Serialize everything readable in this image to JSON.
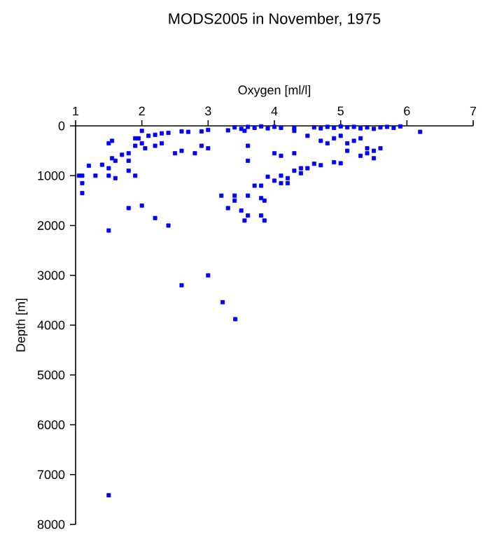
{
  "chart_data": {
    "type": "scatter",
    "title": "MODS2005 in November, 1975",
    "xlabel": "Oxygen [ml/l]",
    "ylabel": "Depth [m]",
    "color": "#0000ff",
    "marker": "square",
    "xlim": [
      1,
      7
    ],
    "ylim": [
      8000,
      0
    ],
    "xticks": [
      1,
      2,
      3,
      4,
      5,
      6,
      7
    ],
    "yticks": [
      0,
      1000,
      2000,
      3000,
      4000,
      5000,
      6000,
      7000,
      8000
    ],
    "x": [
      3.4,
      3.5,
      3.6,
      3.7,
      3.8,
      3.9,
      4.0,
      4.1,
      3.55,
      3.3,
      3.0,
      2.9,
      2.7,
      2.6,
      2.4,
      2.3,
      2.2,
      2.1,
      2.0,
      1.95,
      2.0,
      1.9,
      2.05,
      2.2,
      2.3,
      1.8,
      1.7,
      1.6,
      1.55,
      1.5,
      1.4,
      1.2,
      1.1,
      1.05,
      1.1,
      1.1,
      1.3,
      1.5,
      1.6,
      1.8,
      1.9,
      1.8,
      1.55,
      1.5,
      1.9,
      2.5,
      2.8,
      2.9,
      3.0,
      2.6,
      3.6,
      3.6,
      4.0,
      4.1,
      4.3,
      4.5,
      4.3,
      4.3,
      4.6,
      4.7,
      4.8,
      4.9,
      5.0,
      5.1,
      5.2,
      5.3,
      5.4,
      5.5,
      5.6,
      5.7,
      5.8,
      5.9,
      6.2,
      5.0,
      5.1,
      5.2,
      5.3,
      5.4,
      5.5,
      5.6,
      5.5,
      5.4,
      5.3,
      5.1,
      4.9,
      4.8,
      4.7,
      5.0,
      4.9,
      4.7,
      4.6,
      4.5,
      4.4,
      4.3,
      4.4,
      4.2,
      4.1,
      4.0,
      3.9,
      3.8,
      3.7,
      4.2,
      4.1,
      3.2,
      3.4,
      3.4,
      3.3,
      3.6,
      3.5,
      3.8,
      3.85,
      3.6,
      3.55,
      3.8,
      3.85,
      2.0,
      1.8,
      2.2,
      2.4,
      1.5,
      3.0,
      2.6,
      3.22,
      3.41,
      1.5
    ],
    "values": [
      30,
      60,
      20,
      40,
      10,
      50,
      20,
      40,
      100,
      90,
      80,
      110,
      120,
      110,
      140,
      150,
      180,
      200,
      100,
      250,
      350,
      400,
      450,
      400,
      350,
      550,
      580,
      700,
      650,
      850,
      780,
      800,
      1000,
      1000,
      1150,
      1350,
      1000,
      1000,
      1050,
      900,
      1000,
      700,
      300,
      350,
      250,
      550,
      550,
      400,
      450,
      500,
      400,
      700,
      550,
      600,
      550,
      200,
      100,
      40,
      30,
      50,
      20,
      40,
      10,
      30,
      20,
      50,
      30,
      60,
      30,
      20,
      40,
      10,
      120,
      200,
      350,
      300,
      250,
      450,
      500,
      450,
      650,
      550,
      600,
      500,
      250,
      350,
      300,
      750,
      730,
      790,
      760,
      850,
      850,
      900,
      950,
      1050,
      1150,
      1100,
      1020,
      1200,
      1200,
      1150,
      1000,
      1400,
      1400,
      1500,
      1650,
      1400,
      1700,
      1450,
      1500,
      1800,
      1900,
      1800,
      1900,
      1600,
      1650,
      1850,
      2000,
      2100,
      3000,
      3200,
      3540,
      3880,
      7415
    ]
  }
}
